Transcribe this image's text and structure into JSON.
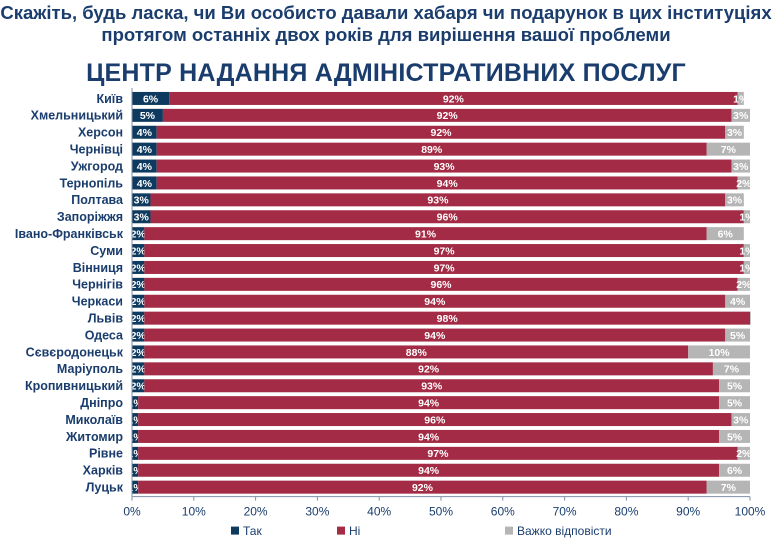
{
  "question": "Скажіть, будь ласка, чи Ви особисто давали хабаря чи подарунок в цих інституціях протягом останніх двох років для вирішення вашої проблеми",
  "chart_data": {
    "type": "bar",
    "orientation": "horizontal",
    "stacked": true,
    "title": "ЦЕНТР НАДАННЯ АДМІНІСТРАТИВНИХ ПОСЛУГ",
    "categories": [
      "Київ",
      "Хмельницький",
      "Херсон",
      "Чернівці",
      "Ужгород",
      "Тернопіль",
      "Полтава",
      "Запоріжжя",
      "Івано-Франківськ",
      "Суми",
      "Вінниця",
      "Чернігів",
      "Черкаси",
      "Львів",
      "Одеса",
      "Сєвєродонецьк",
      "Маріуполь",
      "Кропивницький",
      "Дніпро",
      "Миколаїв",
      "Житомир",
      "Рівне",
      "Харків",
      "Луцьк"
    ],
    "series": [
      {
        "name": "Так",
        "color": "#0f3a5f",
        "values": [
          6,
          5,
          4,
          4,
          4,
          4,
          3,
          3,
          2,
          2,
          2,
          2,
          2,
          2,
          2,
          2,
          2,
          2,
          1,
          1,
          1,
          1,
          1,
          1
        ],
        "labels": [
          "6%",
          "5%",
          "4%",
          "4%",
          "4%",
          "4%",
          "3%",
          "3%",
          "2%",
          "2%",
          "2%",
          "2%",
          "2%",
          "2%",
          "2%",
          "2%",
          "2%",
          "2%",
          "1%",
          "1%",
          "1%",
          "1%",
          "1%",
          "1%"
        ]
      },
      {
        "name": "Ні",
        "color": "#a32b45",
        "values": [
          92,
          92,
          92,
          89,
          93,
          94,
          93,
          96,
          91,
          97,
          97,
          96,
          94,
          98,
          94,
          88,
          92,
          93,
          94,
          96,
          94,
          97,
          94,
          92
        ],
        "labels": [
          "92%",
          "92%",
          "92%",
          "89%",
          "93%",
          "94%",
          "93%",
          "96%",
          "91%",
          "97%",
          "97%",
          "96%",
          "94%",
          "98%",
          "94%",
          "88%",
          "92%",
          "93%",
          "94%",
          "96%",
          "94%",
          "97%",
          "94%",
          "92%"
        ]
      },
      {
        "name": "Важко відповісти",
        "color": "#b5b5b5",
        "values": [
          1,
          3,
          3,
          7,
          3,
          2,
          3,
          1,
          6,
          1,
          1,
          2,
          4,
          0.3,
          5,
          10,
          7,
          5,
          5,
          3,
          5,
          2,
          6,
          7
        ],
        "labels": [
          "1%",
          "3%",
          "3%",
          "7%",
          "3%",
          "2%",
          "3%",
          "1%",
          "6%",
          "1%",
          "1%",
          "2%",
          "4%",
          "",
          "5%",
          "10%",
          "7%",
          "5%",
          "5%",
          "3%",
          "5%",
          "2%",
          "6%",
          "7%"
        ]
      }
    ],
    "xlim": [
      0,
      100
    ],
    "x_ticks": [
      "0%",
      "10%",
      "20%",
      "30%",
      "40%",
      "50%",
      "60%",
      "70%",
      "80%",
      "90%",
      "100%"
    ],
    "legend_position": "bottom"
  }
}
